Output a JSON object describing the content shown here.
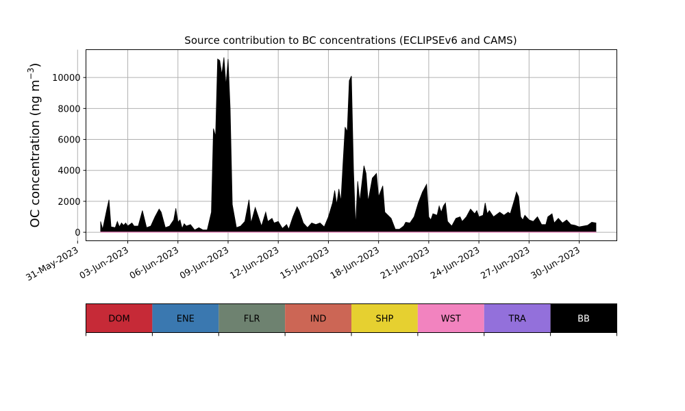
{
  "chart_data": {
    "type": "area",
    "title": "Source contribution to BC concentrations (ECLIPSEv6 and CAMS)",
    "ylabel": "OC concentration (ng m",
    "ylabel_sup": "−3",
    "ylabel_close": ")",
    "xlim": [
      "2023-05-31T12:00",
      "2023-07-02T06:00"
    ],
    "ylim": [
      -550,
      11800
    ],
    "grid": true,
    "x_ticks": [
      "31-May-2023",
      "03-Jun-2023",
      "06-Jun-2023",
      "09-Jun-2023",
      "12-Jun-2023",
      "15-Jun-2023",
      "18-Jun-2023",
      "21-Jun-2023",
      "24-Jun-2023",
      "27-Jun-2023",
      "30-Jun-2023"
    ],
    "y_ticks": [
      0,
      2000,
      4000,
      6000,
      8000,
      10000
    ],
    "x_tick_format": "DD-Mon-YYYY",
    "sources": [
      {
        "name": "DOM",
        "color": "#c62a37",
        "text_color": "#000000"
      },
      {
        "name": "ENE",
        "color": "#3a78b0",
        "text_color": "#000000"
      },
      {
        "name": "FLR",
        "color": "#6e8270",
        "text_color": "#000000"
      },
      {
        "name": "IND",
        "color": "#cc6655",
        "text_color": "#000000"
      },
      {
        "name": "SHP",
        "color": "#e6d030",
        "text_color": "#000000"
      },
      {
        "name": "WST",
        "color": "#f283bf",
        "text_color": "#000000"
      },
      {
        "name": "TRA",
        "color": "#9370db",
        "text_color": "#000000"
      },
      {
        "name": "BB",
        "color": "#000000",
        "text_color": "#ffffff"
      }
    ],
    "series": [
      {
        "name": "BB",
        "color": "#000000",
        "points": [
          [
            "2023-06-01T09:00",
            700
          ],
          [
            "2023-06-01T12:00",
            200
          ],
          [
            "2023-06-01T18:00",
            1500
          ],
          [
            "2023-06-01T21:00",
            2100
          ],
          [
            "2023-06-02T00:00",
            350
          ],
          [
            "2023-06-02T06:00",
            300
          ],
          [
            "2023-06-02T09:00",
            700
          ],
          [
            "2023-06-02T12:00",
            350
          ],
          [
            "2023-06-02T15:00",
            600
          ],
          [
            "2023-06-02T18:00",
            450
          ],
          [
            "2023-06-02T21:00",
            600
          ],
          [
            "2023-06-03T00:00",
            400
          ],
          [
            "2023-06-03T06:00",
            600
          ],
          [
            "2023-06-03T09:00",
            400
          ],
          [
            "2023-06-03T15:00",
            400
          ],
          [
            "2023-06-03T21:00",
            1400
          ],
          [
            "2023-06-04T03:00",
            300
          ],
          [
            "2023-06-04T09:00",
            400
          ],
          [
            "2023-06-04T15:00",
            1000
          ],
          [
            "2023-06-04T21:00",
            1500
          ],
          [
            "2023-06-05T00:00",
            1300
          ],
          [
            "2023-06-05T06:00",
            300
          ],
          [
            "2023-06-05T12:00",
            400
          ],
          [
            "2023-06-05T18:00",
            800
          ],
          [
            "2023-06-05T21:00",
            1550
          ],
          [
            "2023-06-06T00:00",
            650
          ],
          [
            "2023-06-06T03:00",
            800
          ],
          [
            "2023-06-06T06:00",
            250
          ],
          [
            "2023-06-06T09:00",
            550
          ],
          [
            "2023-06-06T12:00",
            400
          ],
          [
            "2023-06-06T18:00",
            500
          ],
          [
            "2023-06-07T00:00",
            150
          ],
          [
            "2023-06-07T06:00",
            300
          ],
          [
            "2023-06-07T12:00",
            150
          ],
          [
            "2023-06-07T18:00",
            150
          ],
          [
            "2023-06-08T00:00",
            1300
          ],
          [
            "2023-06-08T03:00",
            6700
          ],
          [
            "2023-06-08T06:00",
            6200
          ],
          [
            "2023-06-08T09:00",
            11200
          ],
          [
            "2023-06-08T12:00",
            11100
          ],
          [
            "2023-06-08T15:00",
            10200
          ],
          [
            "2023-06-08T18:00",
            11300
          ],
          [
            "2023-06-08T21:00",
            9500
          ],
          [
            "2023-06-09T00:00",
            11200
          ],
          [
            "2023-06-09T03:00",
            8000
          ],
          [
            "2023-06-09T06:00",
            1800
          ],
          [
            "2023-06-09T12:00",
            300
          ],
          [
            "2023-06-09T18:00",
            400
          ],
          [
            "2023-06-10T00:00",
            700
          ],
          [
            "2023-06-10T06:00",
            2100
          ],
          [
            "2023-06-10T09:00",
            600
          ],
          [
            "2023-06-10T15:00",
            1600
          ],
          [
            "2023-06-10T18:00",
            1200
          ],
          [
            "2023-06-11T00:00",
            400
          ],
          [
            "2023-06-11T06:00",
            1300
          ],
          [
            "2023-06-11T09:00",
            700
          ],
          [
            "2023-06-11T15:00",
            900
          ],
          [
            "2023-06-11T18:00",
            600
          ],
          [
            "2023-06-12T00:00",
            700
          ],
          [
            "2023-06-12T06:00",
            250
          ],
          [
            "2023-06-12T12:00",
            500
          ],
          [
            "2023-06-12T15:00",
            200
          ],
          [
            "2023-06-12T21:00",
            1000
          ],
          [
            "2023-06-13T03:00",
            1650
          ],
          [
            "2023-06-13T06:00",
            1400
          ],
          [
            "2023-06-13T12:00",
            600
          ],
          [
            "2023-06-13T18:00",
            300
          ],
          [
            "2023-06-14T00:00",
            600
          ],
          [
            "2023-06-14T06:00",
            500
          ],
          [
            "2023-06-14T12:00",
            600
          ],
          [
            "2023-06-14T18:00",
            350
          ],
          [
            "2023-06-15T00:00",
            1000
          ],
          [
            "2023-06-15T06:00",
            1900
          ],
          [
            "2023-06-15T09:00",
            2700
          ],
          [
            "2023-06-15T12:00",
            1800
          ],
          [
            "2023-06-15T15:00",
            2800
          ],
          [
            "2023-06-15T18:00",
            2000
          ],
          [
            "2023-06-15T21:00",
            4500
          ],
          [
            "2023-06-16T00:00",
            6800
          ],
          [
            "2023-06-16T03:00",
            6500
          ],
          [
            "2023-06-16T06:00",
            9800
          ],
          [
            "2023-06-16T09:00",
            10100
          ],
          [
            "2023-06-16T12:00",
            4000
          ],
          [
            "2023-06-16T15:00",
            400
          ],
          [
            "2023-06-16T18:00",
            3300
          ],
          [
            "2023-06-16T21:00",
            2000
          ],
          [
            "2023-06-17T03:00",
            4300
          ],
          [
            "2023-06-17T06:00",
            3800
          ],
          [
            "2023-06-17T09:00",
            2000
          ],
          [
            "2023-06-17T15:00",
            3500
          ],
          [
            "2023-06-17T21:00",
            3800
          ],
          [
            "2023-06-18T00:00",
            2300
          ],
          [
            "2023-06-18T06:00",
            3000
          ],
          [
            "2023-06-18T09:00",
            1300
          ],
          [
            "2023-06-18T18:00",
            900
          ],
          [
            "2023-06-19T00:00",
            200
          ],
          [
            "2023-06-19T06:00",
            200
          ],
          [
            "2023-06-19T12:00",
            400
          ],
          [
            "2023-06-19T15:00",
            650
          ],
          [
            "2023-06-19T21:00",
            600
          ],
          [
            "2023-06-20T03:00",
            1000
          ],
          [
            "2023-06-20T09:00",
            1900
          ],
          [
            "2023-06-20T15:00",
            2600
          ],
          [
            "2023-06-20T21:00",
            3100
          ],
          [
            "2023-06-21T00:00",
            1000
          ],
          [
            "2023-06-21T03:00",
            800
          ],
          [
            "2023-06-21T06:00",
            1200
          ],
          [
            "2023-06-21T12:00",
            1100
          ],
          [
            "2023-06-21T15:00",
            1700
          ],
          [
            "2023-06-21T18:00",
            1300
          ],
          [
            "2023-06-21T21:00",
            1700
          ],
          [
            "2023-06-22T00:00",
            1900
          ],
          [
            "2023-06-22T03:00",
            700
          ],
          [
            "2023-06-22T09:00",
            400
          ],
          [
            "2023-06-22T15:00",
            900
          ],
          [
            "2023-06-22T21:00",
            1000
          ],
          [
            "2023-06-23T00:00",
            700
          ],
          [
            "2023-06-23T06:00",
            1000
          ],
          [
            "2023-06-23T12:00",
            1500
          ],
          [
            "2023-06-23T18:00",
            1200
          ],
          [
            "2023-06-23T21:00",
            1400
          ],
          [
            "2023-06-24T00:00",
            1000
          ],
          [
            "2023-06-24T06:00",
            1100
          ],
          [
            "2023-06-24T09:00",
            1900
          ],
          [
            "2023-06-24T12:00",
            1200
          ],
          [
            "2023-06-24T15:00",
            1400
          ],
          [
            "2023-06-24T21:00",
            1000
          ],
          [
            "2023-06-25T06:00",
            1300
          ],
          [
            "2023-06-25T12:00",
            1100
          ],
          [
            "2023-06-25T18:00",
            1300
          ],
          [
            "2023-06-25T21:00",
            1200
          ],
          [
            "2023-06-26T03:00",
            2100
          ],
          [
            "2023-06-26T06:00",
            2600
          ],
          [
            "2023-06-26T09:00",
            2300
          ],
          [
            "2023-06-26T12:00",
            1000
          ],
          [
            "2023-06-26T15:00",
            800
          ],
          [
            "2023-06-26T18:00",
            1100
          ],
          [
            "2023-06-27T00:00",
            800
          ],
          [
            "2023-06-27T06:00",
            700
          ],
          [
            "2023-06-27T12:00",
            1000
          ],
          [
            "2023-06-27T18:00",
            500
          ],
          [
            "2023-06-28T00:00",
            500
          ],
          [
            "2023-06-28T03:00",
            1000
          ],
          [
            "2023-06-28T09:00",
            1200
          ],
          [
            "2023-06-28T12:00",
            600
          ],
          [
            "2023-06-28T18:00",
            900
          ],
          [
            "2023-06-29T00:00",
            600
          ],
          [
            "2023-06-29T06:00",
            800
          ],
          [
            "2023-06-29T12:00",
            500
          ],
          [
            "2023-06-29T18:00",
            450
          ],
          [
            "2023-06-30T00:00",
            350
          ],
          [
            "2023-06-30T06:00",
            400
          ],
          [
            "2023-06-30T12:00",
            450
          ],
          [
            "2023-06-30T18:00",
            650
          ],
          [
            "2023-07-01T00:00",
            600
          ]
        ]
      },
      {
        "name": "WST",
        "color": "#f283bf",
        "points": [
          [
            "2023-06-01T09:00",
            15
          ],
          [
            "2023-06-05T00:00",
            20
          ],
          [
            "2023-06-10T00:00",
            15
          ],
          [
            "2023-06-15T00:00",
            20
          ],
          [
            "2023-06-20T00:00",
            15
          ],
          [
            "2023-06-25T00:00",
            20
          ],
          [
            "2023-07-01T00:00",
            15
          ]
        ]
      }
    ]
  }
}
